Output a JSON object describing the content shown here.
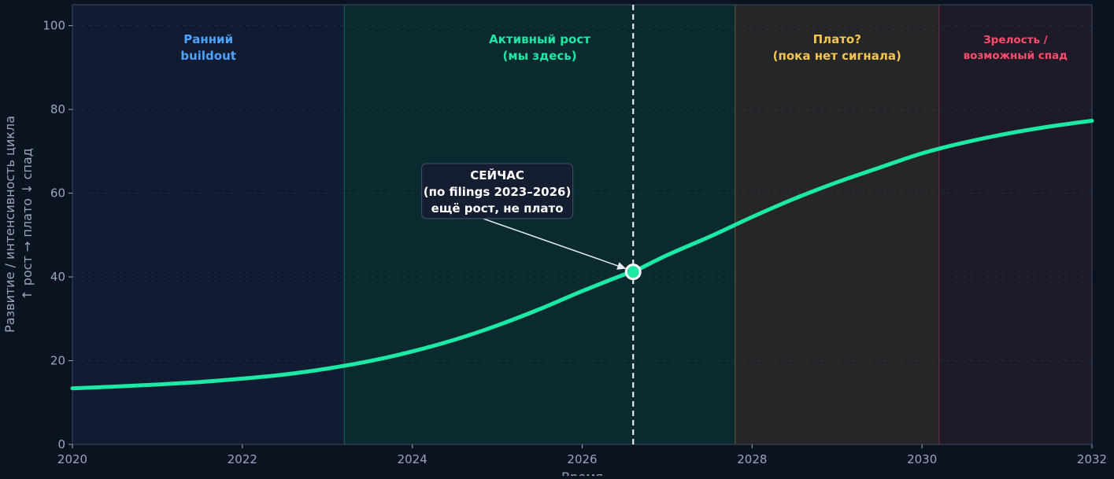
{
  "chart_data": {
    "type": "line",
    "xlabel": "Время",
    "ylabel_lines": [
      "Развитие / интенсивность цикла",
      "↑ рост  → плато  ↓ спад"
    ],
    "xlim": [
      2020,
      2032
    ],
    "ylim": [
      0,
      105
    ],
    "x_ticks": [
      "2020",
      "2022",
      "2024",
      "2026",
      "2028",
      "2030",
      "2032"
    ],
    "y_ticks": [
      "0",
      "20",
      "40",
      "60",
      "80",
      "100"
    ],
    "grid": true,
    "colors": {
      "background": "#0b1220",
      "curve": "#1de9a6",
      "tick_text": "#9aa7bb"
    },
    "zones": [
      {
        "x0": 2020,
        "x1": 2023.2,
        "label_lines": [
          "Ранний",
          "buildout"
        ],
        "color": "#4da3ff",
        "fill": "#111c33"
      },
      {
        "x0": 2023.2,
        "x1": 2027.8,
        "label_lines": [
          "Активный рост",
          "(мы здесь)"
        ],
        "color": "#1de9a6",
        "fill": "#0a2a2f"
      },
      {
        "x0": 2027.8,
        "x1": 2030.2,
        "label_lines": [
          "Плато?",
          "(пока нет сигнала)"
        ],
        "color": "#f5c451",
        "fill": "#242628"
      },
      {
        "x0": 2030.2,
        "x1": 2032,
        "label_lines": [
          "Зрелость /",
          "возможный спад"
        ],
        "color": "#ff4d6d",
        "fill": "#1e1a28"
      }
    ],
    "series": [
      {
        "x": [
          2020,
          2020.5,
          2021,
          2021.5,
          2022,
          2022.5,
          2023,
          2023.5,
          2024,
          2024.5,
          2025,
          2025.5,
          2026,
          2026.5,
          2026.6,
          2027,
          2027.5,
          2028,
          2028.5,
          2029,
          2029.5,
          2030,
          2030.5,
          2031,
          2031.5,
          2032
        ],
        "y": [
          13.4,
          13.8,
          14.3,
          14.9,
          15.7,
          16.7,
          18.1,
          19.9,
          22.2,
          25.0,
          28.4,
          32.3,
          36.6,
          40.6,
          41.2,
          45.2,
          49.6,
          54.3,
          58.7,
          62.6,
          66.1,
          69.5,
          72.1,
          74.2,
          75.9,
          77.3
        ]
      }
    ],
    "now_marker": {
      "x": 2026.6,
      "y": 41.2
    },
    "annotation": {
      "lines": [
        "СЕЙЧАС",
        "(по filings 2023–2026)",
        "ещё рост, не плато"
      ],
      "x": 2025.0,
      "y": 60.5
    }
  }
}
